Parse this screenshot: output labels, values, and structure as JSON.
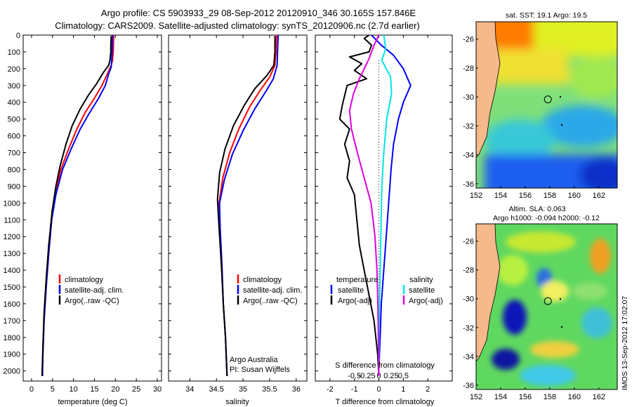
{
  "header": {
    "line1": "Argo profile: CS 5903933_29 08-Sep-2012 20120910_346 30.165S 157.846E",
    "line2": "Climatology: CARS2009. Satellite-adjusted climatology: synTS_20120906.nc (2.7d earlier)"
  },
  "colors": {
    "climatology": "#ff0000",
    "satellite": "#0000ff",
    "argo": "#000000",
    "sal_satellite": "#00e5e5",
    "sal_argo": "#e000e0",
    "land": "#f5b98c"
  },
  "chart_data": [
    {
      "type": "line",
      "title": "",
      "xlabel": "temperature (deg C)",
      "ylabel": "",
      "xlim": [
        -2,
        31
      ],
      "ylim": [
        2060,
        0
      ],
      "x_ticks": [
        0,
        5,
        10,
        15,
        20,
        25,
        30
      ],
      "y_ticks": [
        0,
        100,
        200,
        300,
        400,
        500,
        600,
        700,
        800,
        900,
        1000,
        1100,
        1200,
        1300,
        1400,
        1500,
        1600,
        1700,
        1800,
        1900,
        2000
      ],
      "legend": {
        "position": "lower-center",
        "entries": [
          "climatology",
          "satellite-adj. clim.",
          "Argo(..raw -QC)"
        ]
      },
      "series": [
        {
          "name": "climatology",
          "color": "#ff0000",
          "points": [
            [
              19.6,
              0
            ],
            [
              19.5,
              100
            ],
            [
              19.3,
              150
            ],
            [
              19.0,
              180
            ],
            [
              18.1,
              230
            ],
            [
              16.8,
              300
            ],
            [
              14.9,
              380
            ],
            [
              12.8,
              460
            ],
            [
              10.8,
              560
            ],
            [
              8.8,
              680
            ],
            [
              7.0,
              800
            ],
            [
              5.6,
              950
            ],
            [
              4.8,
              1100
            ],
            [
              4.1,
              1300
            ],
            [
              3.5,
              1500
            ],
            [
              3.0,
              1700
            ],
            [
              2.7,
              1900
            ],
            [
              2.5,
              2030
            ]
          ]
        },
        {
          "name": "satellite-adj. clim.",
          "color": "#0000ff",
          "points": [
            [
              19.3,
              0
            ],
            [
              19.2,
              100
            ],
            [
              19.1,
              150
            ],
            [
              19.0,
              190
            ],
            [
              18.4,
              230
            ],
            [
              17.6,
              300
            ],
            [
              15.9,
              380
            ],
            [
              13.9,
              460
            ],
            [
              11.6,
              560
            ],
            [
              9.4,
              680
            ],
            [
              7.4,
              800
            ],
            [
              5.8,
              950
            ],
            [
              4.8,
              1100
            ],
            [
              4.1,
              1300
            ],
            [
              3.5,
              1500
            ],
            [
              3.0,
              1700
            ],
            [
              2.7,
              1900
            ],
            [
              2.6,
              2030
            ]
          ]
        },
        {
          "name": "Argo(..raw -QC)",
          "color": "#000000",
          "points": [
            [
              19.0,
              5
            ],
            [
              18.9,
              50
            ],
            [
              18.9,
              100
            ],
            [
              18.7,
              150
            ],
            [
              18.4,
              180
            ],
            [
              17.2,
              220
            ],
            [
              15.5,
              290
            ],
            [
              13.5,
              360
            ],
            [
              11.6,
              440
            ],
            [
              9.7,
              540
            ],
            [
              8.2,
              650
            ],
            [
              6.8,
              780
            ],
            [
              5.8,
              900
            ],
            [
              4.9,
              1050
            ],
            [
              4.1,
              1250
            ],
            [
              3.5,
              1450
            ],
            [
              3.0,
              1650
            ],
            [
              2.7,
              1850
            ],
            [
              2.5,
              2030
            ]
          ]
        }
      ]
    },
    {
      "type": "line",
      "title": "",
      "xlabel": "salinity",
      "xlim": [
        33.6,
        36.2
      ],
      "ylim": [
        2060,
        0
      ],
      "x_ticks": [
        34,
        34.5,
        35,
        35.5,
        36
      ],
      "annotations": [
        "Argo Australia",
        "PI: Susan Wijffels"
      ],
      "legend": {
        "position": "lower-center",
        "entries": [
          "climatology",
          "satellite-adj. clim.",
          "Argo(..raw -QC)"
        ]
      },
      "series": [
        {
          "name": "climatology",
          "color": "#ff0000",
          "points": [
            [
              35.63,
              0
            ],
            [
              35.62,
              100
            ],
            [
              35.6,
              180
            ],
            [
              35.5,
              250
            ],
            [
              35.32,
              330
            ],
            [
              35.12,
              430
            ],
            [
              34.92,
              560
            ],
            [
              34.75,
              700
            ],
            [
              34.62,
              850
            ],
            [
              34.55,
              1000
            ],
            [
              34.57,
              1150
            ],
            [
              34.6,
              1350
            ],
            [
              34.63,
              1600
            ],
            [
              34.67,
              1800
            ],
            [
              34.7,
              2030
            ]
          ]
        },
        {
          "name": "satellite-adj. clim.",
          "color": "#0000ff",
          "points": [
            [
              35.66,
              0
            ],
            [
              35.65,
              100
            ],
            [
              35.64,
              180
            ],
            [
              35.57,
              260
            ],
            [
              35.42,
              340
            ],
            [
              35.22,
              440
            ],
            [
              35.0,
              570
            ],
            [
              34.8,
              710
            ],
            [
              34.65,
              860
            ],
            [
              34.56,
              1000
            ],
            [
              34.57,
              1150
            ],
            [
              34.6,
              1350
            ],
            [
              34.63,
              1600
            ],
            [
              34.67,
              1800
            ],
            [
              34.7,
              2030
            ]
          ]
        },
        {
          "name": "Argo(..raw -QC)",
          "color": "#000000",
          "points": [
            [
              35.6,
              5
            ],
            [
              35.6,
              100
            ],
            [
              35.58,
              180
            ],
            [
              35.45,
              240
            ],
            [
              35.22,
              320
            ],
            [
              35.02,
              420
            ],
            [
              34.82,
              540
            ],
            [
              34.66,
              680
            ],
            [
              34.56,
              820
            ],
            [
              34.52,
              980
            ],
            [
              34.55,
              1150
            ],
            [
              34.59,
              1350
            ],
            [
              34.63,
              1600
            ],
            [
              34.67,
              1800
            ],
            [
              34.7,
              2030
            ]
          ]
        }
      ]
    },
    {
      "type": "line",
      "title": "",
      "xlabel": "T difference from climatology",
      "x2label": "S difference from climatology",
      "xlim": [
        -2.6,
        3.0
      ],
      "ylim": [
        2060,
        0
      ],
      "x_ticks": [
        -2,
        -1,
        0,
        1,
        2
      ],
      "x2_ticks": [
        {
          "value": -0.5,
          "label": "-0.5"
        },
        {
          "value": -0.25,
          "label": "-0.25"
        },
        {
          "value": 0,
          "label": "0"
        },
        {
          "value": 0.25,
          "label": "0.25"
        },
        {
          "value": 0.5,
          "label": "0.5"
        }
      ],
      "legend": {
        "position": "lower-center",
        "headers": [
          "temperature",
          "salinity"
        ],
        "entries": [
          "satellite",
          "Argo(-adj)",
          "satellite",
          "Argo(-adj)"
        ]
      },
      "series": [
        {
          "name": "temperature satellite",
          "color": "#0000ff",
          "points": [
            [
              -0.3,
              0
            ],
            [
              0.1,
              60
            ],
            [
              0.6,
              120
            ],
            [
              1.0,
              200
            ],
            [
              1.3,
              300
            ],
            [
              1.0,
              400
            ],
            [
              0.8,
              500
            ],
            [
              0.6,
              650
            ],
            [
              0.5,
              800
            ],
            [
              0.4,
              1000
            ],
            [
              0.3,
              1200
            ],
            [
              0.2,
              1400
            ],
            [
              0.1,
              1600
            ],
            [
              0.05,
              1800
            ],
            [
              0.0,
              2000
            ]
          ]
        },
        {
          "name": "temperature Argo(-adj)",
          "color": "#000000",
          "points": [
            [
              -0.4,
              0
            ],
            [
              -0.6,
              20
            ],
            [
              -0.3,
              60
            ],
            [
              -0.4,
              100
            ],
            [
              -1.2,
              130
            ],
            [
              -0.7,
              170
            ],
            [
              -1.0,
              210
            ],
            [
              -0.5,
              260
            ],
            [
              -1.3,
              300
            ],
            [
              -1.5,
              420
            ],
            [
              -1.6,
              500
            ],
            [
              -1.2,
              560
            ],
            [
              -1.4,
              650
            ],
            [
              -1.2,
              750
            ],
            [
              -1.3,
              850
            ],
            [
              -1.0,
              950
            ],
            [
              -0.9,
              1100
            ],
            [
              -0.8,
              1250
            ],
            [
              -0.6,
              1400
            ],
            [
              -0.4,
              1550
            ],
            [
              -0.2,
              1700
            ],
            [
              -0.05,
              1900
            ],
            [
              0.0,
              2030
            ]
          ]
        },
        {
          "name": "salinity satellite",
          "color": "#00e5e5",
          "points": [
            [
              0.05,
              0
            ],
            [
              0.07,
              80
            ],
            [
              0.03,
              150
            ],
            [
              0.12,
              250
            ],
            [
              0.13,
              350
            ],
            [
              0.08,
              500
            ],
            [
              0.05,
              700
            ],
            [
              0.03,
              900
            ],
            [
              0.02,
              1200
            ],
            [
              0.01,
              1500
            ],
            [
              0.0,
              1800
            ],
            [
              0.0,
              2030
            ]
          ]
        },
        {
          "name": "salinity Argo(-adj)",
          "color": "#e000e0",
          "points": [
            [
              0.0,
              0
            ],
            [
              -0.05,
              60
            ],
            [
              -0.1,
              140
            ],
            [
              -0.15,
              200
            ],
            [
              -0.2,
              260
            ],
            [
              -0.26,
              350
            ],
            [
              -0.3,
              450
            ],
            [
              -0.28,
              560
            ],
            [
              -0.22,
              700
            ],
            [
              -0.15,
              850
            ],
            [
              -0.08,
              1000
            ],
            [
              -0.04,
              1200
            ],
            [
              -0.02,
              1400
            ],
            [
              -0.01,
              1600
            ],
            [
              0.0,
              2030
            ]
          ]
        }
      ]
    },
    {
      "type": "heatmap",
      "title": "sat. SST: 19.1  Argo: 19.5",
      "xlim": [
        152,
        163.5
      ],
      "ylim": [
        -36.3,
        -24.8
      ],
      "x_ticks": [
        152,
        154,
        156,
        158,
        160,
        162
      ],
      "y_ticks": [
        -26,
        -28,
        -30,
        -32,
        -34,
        -36
      ],
      "marker": {
        "lon": 157.846,
        "lat": -30.165
      }
    },
    {
      "type": "heatmap",
      "title": "Altim. SLA: 0.063",
      "subtitle": "Argo h1000: -0.094 h2000: -0.12",
      "side_label": "IMOS 13-Sep-2012 17:02:07",
      "xlim": [
        152,
        163.5
      ],
      "ylim": [
        -36.3,
        -24.8
      ],
      "x_ticks": [
        152,
        154,
        156,
        158,
        160,
        162
      ],
      "y_ticks": [
        -26,
        -28,
        -30,
        -32,
        -34,
        -36
      ],
      "marker": {
        "lon": 157.846,
        "lat": -30.165
      }
    }
  ]
}
